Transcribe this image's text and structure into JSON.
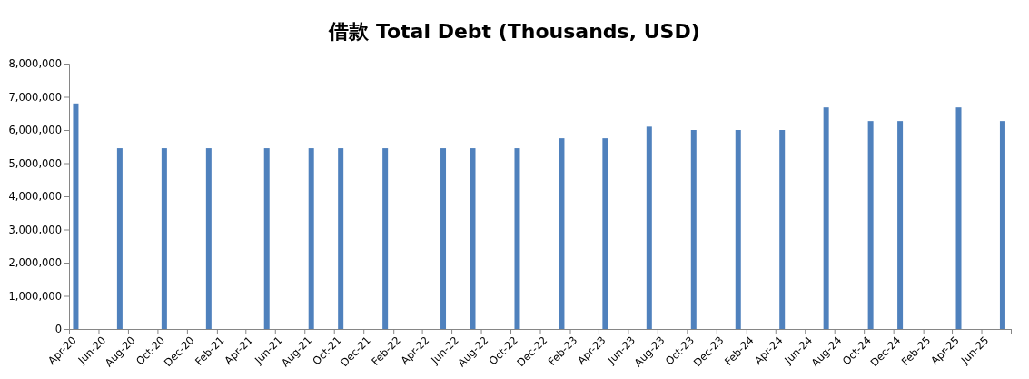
{
  "chart_data": {
    "type": "bar",
    "title": "借款 Total Debt (Thousands, USD)",
    "x": [
      "2020-04-15",
      "2020-07-15",
      "2020-10-15",
      "2021-01-15",
      "2021-05-15",
      "2021-08-15",
      "2021-10-15",
      "2022-01-15",
      "2022-05-15",
      "2022-07-15",
      "2022-10-15",
      "2023-01-15",
      "2023-04-15",
      "2023-07-15",
      "2023-10-15",
      "2024-01-15",
      "2024-04-15",
      "2024-07-15",
      "2024-10-15",
      "2024-12-15",
      "2025-04-15",
      "2025-07-15"
    ],
    "values": [
      6800000,
      5450000,
      5450000,
      5450000,
      5450000,
      5450000,
      5450000,
      5450000,
      5450000,
      5450000,
      5450000,
      5750000,
      5750000,
      6100000,
      6000000,
      6000000,
      6000000,
      6680000,
      6270000,
      6270000,
      6680000,
      6270000
    ],
    "color": "#4f81bd",
    "xlim": [
      "2020-04",
      "2025-08"
    ],
    "xticks": [
      {
        "value": "2020-04",
        "label": "Apr-20"
      },
      {
        "value": "2020-06",
        "label": "Jun-20"
      },
      {
        "value": "2020-08",
        "label": "Aug-20"
      },
      {
        "value": "2020-10",
        "label": "Oct-20"
      },
      {
        "value": "2020-12",
        "label": "Dec-20"
      },
      {
        "value": "2021-02",
        "label": "Feb-21"
      },
      {
        "value": "2021-04",
        "label": "Apr-21"
      },
      {
        "value": "2021-06",
        "label": "Jun-21"
      },
      {
        "value": "2021-08",
        "label": "Aug-21"
      },
      {
        "value": "2021-10",
        "label": "Oct-21"
      },
      {
        "value": "2021-12",
        "label": "Dec-21"
      },
      {
        "value": "2022-02",
        "label": "Feb-22"
      },
      {
        "value": "2022-04",
        "label": "Apr-22"
      },
      {
        "value": "2022-06",
        "label": "Jun-22"
      },
      {
        "value": "2022-08",
        "label": "Aug-22"
      },
      {
        "value": "2022-10",
        "label": "Oct-22"
      },
      {
        "value": "2022-12",
        "label": "Dec-22"
      },
      {
        "value": "2023-02",
        "label": "Feb-23"
      },
      {
        "value": "2023-04",
        "label": "Apr-23"
      },
      {
        "value": "2023-06",
        "label": "Jun-23"
      },
      {
        "value": "2023-08",
        "label": "Aug-23"
      },
      {
        "value": "2023-10",
        "label": "Oct-23"
      },
      {
        "value": "2023-12",
        "label": "Dec-23"
      },
      {
        "value": "2024-02",
        "label": "Feb-24"
      },
      {
        "value": "2024-04",
        "label": "Apr-24"
      },
      {
        "value": "2024-06",
        "label": "Jun-24"
      },
      {
        "value": "2024-08",
        "label": "Aug-24"
      },
      {
        "value": "2024-10",
        "label": "Oct-24"
      },
      {
        "value": "2024-12",
        "label": "Dec-24"
      },
      {
        "value": "2025-02",
        "label": "Feb-25"
      },
      {
        "value": "2025-04",
        "label": "Apr-25"
      },
      {
        "value": "2025-06",
        "label": "Jun-25"
      },
      {
        "value": "2025-08",
        "label": null
      }
    ],
    "ylim": [
      0,
      8000000
    ],
    "yticks": [
      {
        "value": 0,
        "label": "0"
      },
      {
        "value": 1000000,
        "label": "1,000,000"
      },
      {
        "value": 2000000,
        "label": "2,000,000"
      },
      {
        "value": 3000000,
        "label": "3,000,000"
      },
      {
        "value": 4000000,
        "label": "4,000,000"
      },
      {
        "value": 5000000,
        "label": "5,000,000"
      },
      {
        "value": 6000000,
        "label": "6,000,000"
      },
      {
        "value": 7000000,
        "label": "7,000,000"
      },
      {
        "value": 8000000,
        "label": "8,000,000"
      }
    ],
    "grid": false,
    "legend": false
  }
}
